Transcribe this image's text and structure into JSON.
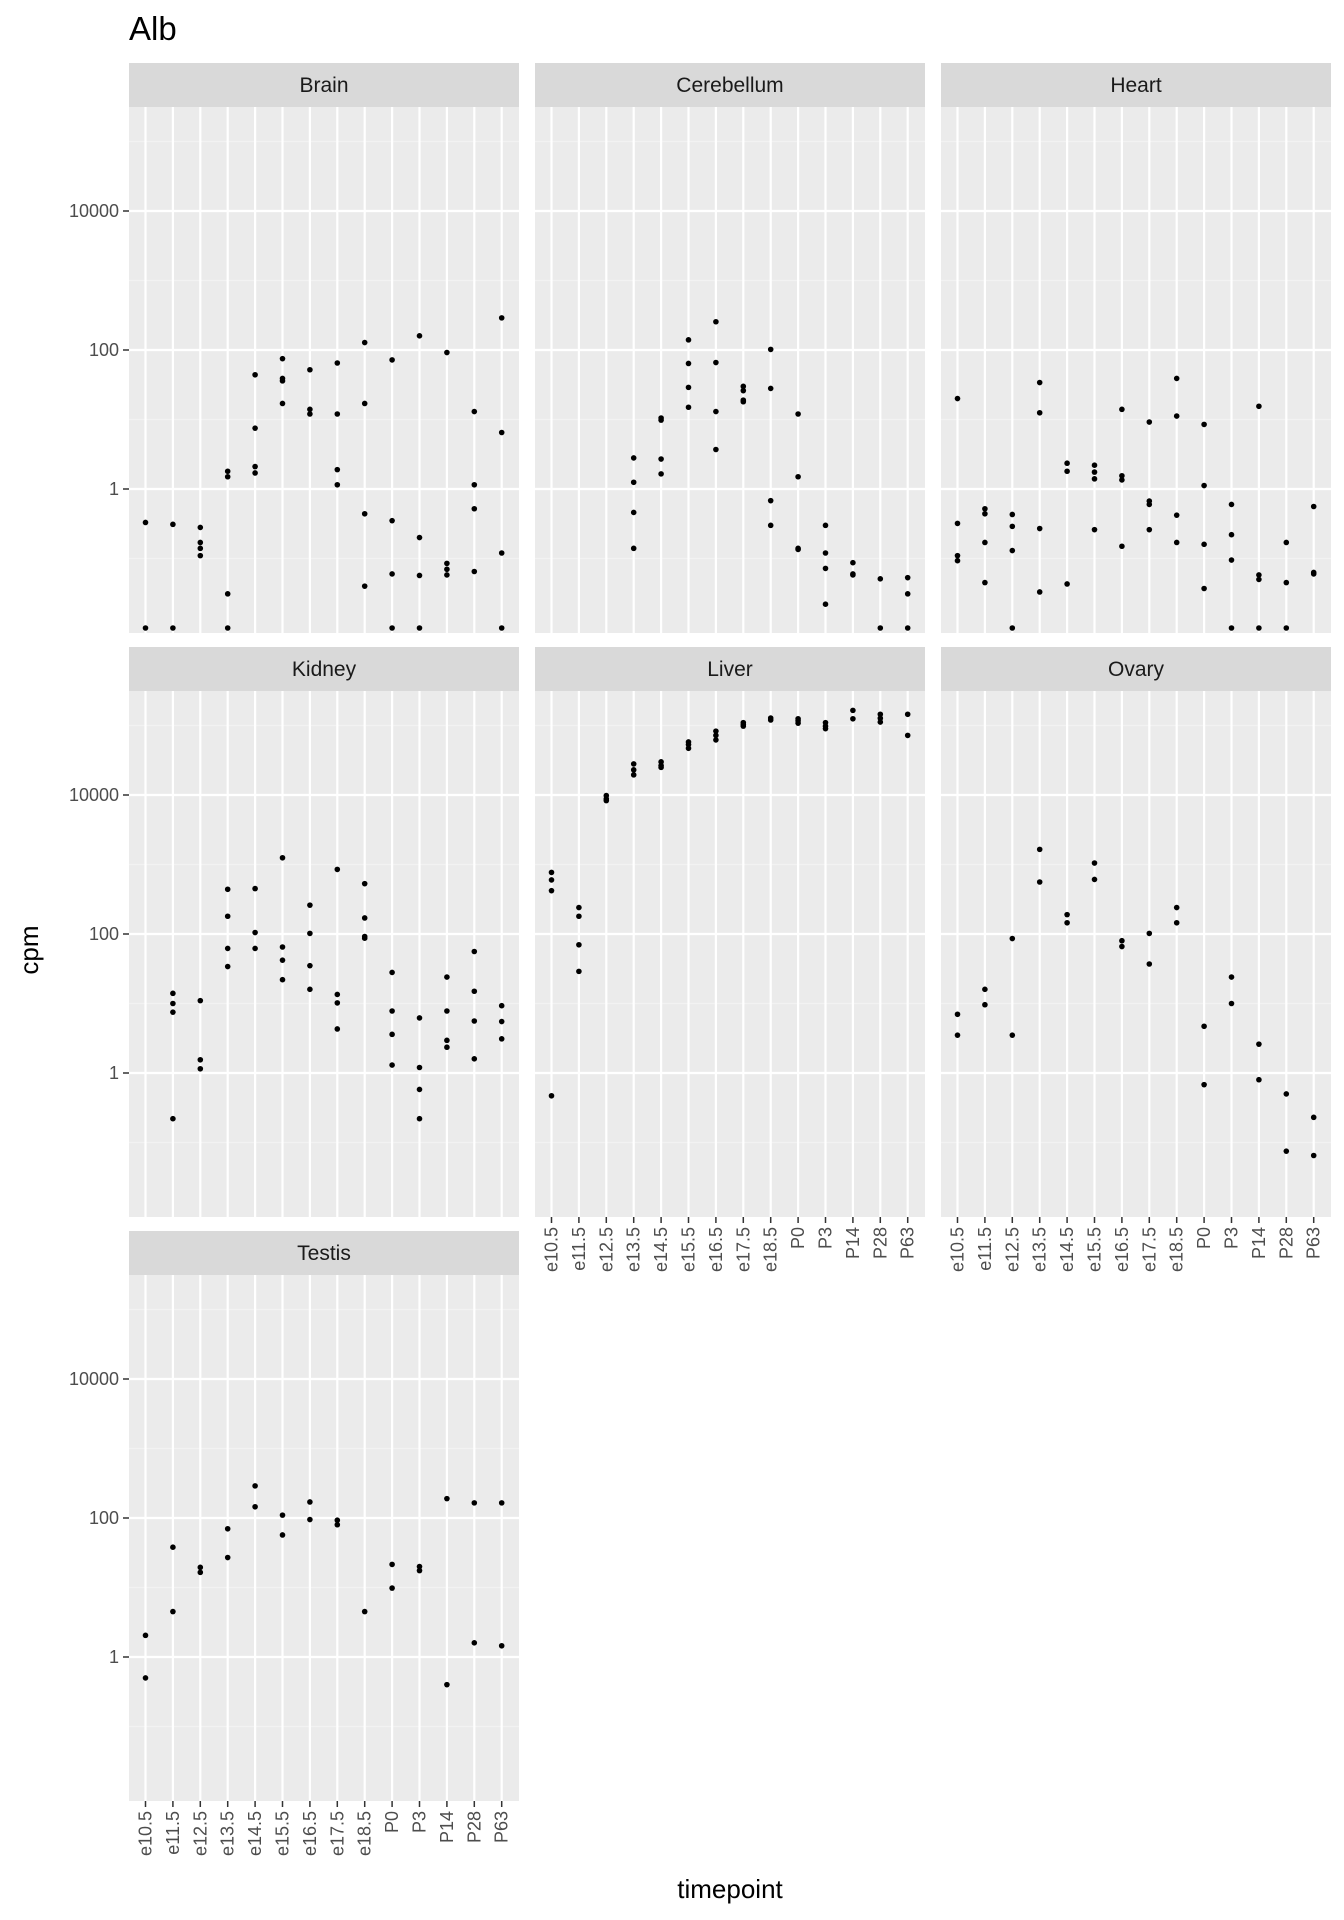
{
  "chart_data": {
    "type": "scatter",
    "title": "Alb",
    "xlabel": "timepoint",
    "ylabel": "cpm",
    "y_scale": "log10",
    "y_ticks": [
      "1",
      "100",
      "10000"
    ],
    "x_categories": [
      "e10.5",
      "e11.5",
      "e12.5",
      "e13.5",
      "e14.5",
      "e15.5",
      "e16.5",
      "e17.5",
      "e18.5",
      "P0",
      "P3",
      "P14",
      "P28",
      "P63"
    ],
    "grid": true,
    "legend": "none",
    "panels": [
      {
        "name": "Brain",
        "points": [
          [
            "e10.5",
            0.33
          ],
          [
            "e10.5",
            0.01
          ],
          [
            "e11.5",
            0.31
          ],
          [
            "e11.5",
            0.01
          ],
          [
            "e12.5",
            0.28
          ],
          [
            "e12.5",
            0.14
          ],
          [
            "e12.5",
            0.17
          ],
          [
            "e12.5",
            0.11
          ],
          [
            "e13.5",
            1.8
          ],
          [
            "e13.5",
            1.5
          ],
          [
            "e13.5",
            0.031
          ],
          [
            "e13.5",
            0.01
          ],
          [
            "e14.5",
            44
          ],
          [
            "e14.5",
            7.5
          ],
          [
            "e14.5",
            2.1
          ],
          [
            "e14.5",
            1.7
          ],
          [
            "e15.5",
            75
          ],
          [
            "e15.5",
            39
          ],
          [
            "e15.5",
            36
          ],
          [
            "e15.5",
            17
          ],
          [
            "e16.5",
            52
          ],
          [
            "e16.5",
            14
          ],
          [
            "e16.5",
            12
          ],
          [
            "e17.5",
            65
          ],
          [
            "e17.5",
            12
          ],
          [
            "e17.5",
            1.9
          ],
          [
            "e17.5",
            1.15
          ],
          [
            "e18.5",
            128
          ],
          [
            "e18.5",
            17
          ],
          [
            "e18.5",
            0.44
          ],
          [
            "e18.5",
            0.04
          ],
          [
            "P0",
            72
          ],
          [
            "P0",
            0.35
          ],
          [
            "P0",
            0.06
          ],
          [
            "P0",
            0.01
          ],
          [
            "P3",
            160
          ],
          [
            "P3",
            0.2
          ],
          [
            "P3",
            0.057
          ],
          [
            "P3",
            0.01
          ],
          [
            "P14",
            92
          ],
          [
            "P14",
            0.085
          ],
          [
            "P14",
            0.07
          ],
          [
            "P14",
            0.058
          ],
          [
            "P28",
            13
          ],
          [
            "P28",
            1.15
          ],
          [
            "P28",
            0.52
          ],
          [
            "P28",
            0.065
          ],
          [
            "P63",
            290
          ],
          [
            "P63",
            6.5
          ],
          [
            "P63",
            0.12
          ],
          [
            "P63",
            0.01
          ]
        ]
      },
      {
        "name": "Cerebellum",
        "points": [
          [
            "e13.5",
            2.8
          ],
          [
            "e13.5",
            1.25
          ],
          [
            "e13.5",
            0.46
          ],
          [
            "e13.5",
            0.14
          ],
          [
            "e14.5",
            10.5
          ],
          [
            "e14.5",
            9.8
          ],
          [
            "e14.5",
            2.7
          ],
          [
            "e14.5",
            1.65
          ],
          [
            "e15.5",
            140
          ],
          [
            "e15.5",
            64
          ],
          [
            "e15.5",
            29
          ],
          [
            "e15.5",
            15
          ],
          [
            "e16.5",
            255
          ],
          [
            "e16.5",
            66
          ],
          [
            "e16.5",
            13
          ],
          [
            "e16.5",
            3.7
          ],
          [
            "e17.5",
            30
          ],
          [
            "e17.5",
            26
          ],
          [
            "e17.5",
            19
          ],
          [
            "e17.5",
            18
          ],
          [
            "e18.5",
            102
          ],
          [
            "e18.5",
            28
          ],
          [
            "e18.5",
            0.68
          ],
          [
            "e18.5",
            0.3
          ],
          [
            "P0",
            12
          ],
          [
            "P0",
            1.5
          ],
          [
            "P0",
            0.14
          ],
          [
            "P0",
            0.135
          ],
          [
            "P3",
            0.3
          ],
          [
            "P3",
            0.12
          ],
          [
            "P3",
            0.072
          ],
          [
            "P3",
            0.022
          ],
          [
            "P14",
            0.087
          ],
          [
            "P14",
            0.06
          ],
          [
            "P14",
            0.058
          ],
          [
            "P28",
            0.051
          ],
          [
            "P28",
            0.01
          ],
          [
            "P63",
            0.053
          ],
          [
            "P63",
            0.031
          ],
          [
            "P63",
            0.01
          ]
        ]
      },
      {
        "name": "Heart",
        "points": [
          [
            "e10.5",
            20
          ],
          [
            "e10.5",
            0.32
          ],
          [
            "e10.5",
            0.11
          ],
          [
            "e10.5",
            0.093
          ],
          [
            "e11.5",
            0.52
          ],
          [
            "e11.5",
            0.44
          ],
          [
            "e11.5",
            0.17
          ],
          [
            "e11.5",
            0.045
          ],
          [
            "e12.5",
            0.43
          ],
          [
            "e12.5",
            0.29
          ],
          [
            "e12.5",
            0.13
          ],
          [
            "e12.5",
            0.01
          ],
          [
            "e13.5",
            34
          ],
          [
            "e13.5",
            12.5
          ],
          [
            "e13.5",
            0.27
          ],
          [
            "e13.5",
            0.033
          ],
          [
            "e14.5",
            2.35
          ],
          [
            "e14.5",
            1.8
          ],
          [
            "e14.5",
            0.043
          ],
          [
            "e15.5",
            2.2
          ],
          [
            "e15.5",
            1.75
          ],
          [
            "e15.5",
            1.4
          ],
          [
            "e15.5",
            0.26
          ],
          [
            "e16.5",
            14
          ],
          [
            "e16.5",
            1.55
          ],
          [
            "e16.5",
            1.35
          ],
          [
            "e16.5",
            0.15
          ],
          [
            "e17.5",
            9.2
          ],
          [
            "e17.5",
            0.67
          ],
          [
            "e17.5",
            0.6
          ],
          [
            "e17.5",
            0.26
          ],
          [
            "e18.5",
            39
          ],
          [
            "e18.5",
            11.2
          ],
          [
            "e18.5",
            0.42
          ],
          [
            "e18.5",
            0.17
          ],
          [
            "P0",
            8.5
          ],
          [
            "P0",
            1.12
          ],
          [
            "P0",
            0.16
          ],
          [
            "P0",
            0.037
          ],
          [
            "P3",
            0.6
          ],
          [
            "P3",
            0.22
          ],
          [
            "P3",
            0.095
          ],
          [
            "P3",
            0.01
          ],
          [
            "P14",
            15.5
          ],
          [
            "P14",
            0.058
          ],
          [
            "P14",
            0.05
          ],
          [
            "P14",
            0.01
          ],
          [
            "P28",
            0.17
          ],
          [
            "P28",
            0.045
          ],
          [
            "P28",
            0.01
          ],
          [
            "P63",
            0.56
          ],
          [
            "P63",
            0.063
          ],
          [
            "P63",
            0.06
          ]
        ]
      },
      {
        "name": "Kidney",
        "points": [
          [
            "e11.5",
            14
          ],
          [
            "e11.5",
            10
          ],
          [
            "e11.5",
            7.5
          ],
          [
            "e11.5",
            0.22
          ],
          [
            "e12.5",
            11
          ],
          [
            "e12.5",
            1.55
          ],
          [
            "e12.5",
            1.15
          ],
          [
            "e13.5",
            440
          ],
          [
            "e13.5",
            180
          ],
          [
            "e13.5",
            62
          ],
          [
            "e13.5",
            34
          ],
          [
            "e14.5",
            450
          ],
          [
            "e14.5",
            105
          ],
          [
            "e14.5",
            62
          ],
          [
            "e15.5",
            1250
          ],
          [
            "e15.5",
            65
          ],
          [
            "e15.5",
            42
          ],
          [
            "e15.5",
            22
          ],
          [
            "e16.5",
            260
          ],
          [
            "e16.5",
            102
          ],
          [
            "e16.5",
            35
          ],
          [
            "e16.5",
            16
          ],
          [
            "e17.5",
            850
          ],
          [
            "e17.5",
            13.5
          ],
          [
            "e17.5",
            10.2
          ],
          [
            "e17.5",
            4.3
          ],
          [
            "e18.5",
            530
          ],
          [
            "e18.5",
            170
          ],
          [
            "e18.5",
            92
          ],
          [
            "e18.5",
            87
          ],
          [
            "P0",
            28
          ],
          [
            "P0",
            7.8
          ],
          [
            "P0",
            3.6
          ],
          [
            "P0",
            1.3
          ],
          [
            "P3",
            6.2
          ],
          [
            "P3",
            1.2
          ],
          [
            "P3",
            0.58
          ],
          [
            "P3",
            0.22
          ],
          [
            "P14",
            24
          ],
          [
            "P14",
            7.8
          ],
          [
            "P14",
            2.95
          ],
          [
            "P14",
            2.35
          ],
          [
            "P28",
            56
          ],
          [
            "P28",
            15
          ],
          [
            "P28",
            5.6
          ],
          [
            "P28",
            1.6
          ],
          [
            "P63",
            9.3
          ],
          [
            "P63",
            5.5
          ],
          [
            "P63",
            3.1
          ]
        ]
      },
      {
        "name": "Liver",
        "points": [
          [
            "e10.5",
            770
          ],
          [
            "e10.5",
            600
          ],
          [
            "e10.5",
            420
          ],
          [
            "e10.5",
            0.47
          ],
          [
            "e11.5",
            240
          ],
          [
            "e11.5",
            180
          ],
          [
            "e11.5",
            70
          ],
          [
            "e11.5",
            29
          ],
          [
            "e12.5",
            9800
          ],
          [
            "e12.5",
            8800
          ],
          [
            "e12.5",
            8300
          ],
          [
            "e13.5",
            28000
          ],
          [
            "e13.5",
            23000
          ],
          [
            "e13.5",
            19500
          ],
          [
            "e14.5",
            30000
          ],
          [
            "e14.5",
            26500
          ],
          [
            "e14.5",
            25000
          ],
          [
            "e15.5",
            58000
          ],
          [
            "e15.5",
            53000
          ],
          [
            "e15.5",
            47000
          ],
          [
            "e16.5",
            83000
          ],
          [
            "e16.5",
            72000
          ],
          [
            "e16.5",
            62000
          ],
          [
            "e17.5",
            110000
          ],
          [
            "e17.5",
            103000
          ],
          [
            "e17.5",
            98000
          ],
          [
            "e18.5",
            128000
          ],
          [
            "e18.5",
            120000
          ],
          [
            "P0",
            125000
          ],
          [
            "P0",
            117000
          ],
          [
            "P0",
            108000
          ],
          [
            "P3",
            110000
          ],
          [
            "P3",
            98000
          ],
          [
            "P3",
            90000
          ],
          [
            "P14",
            165000
          ],
          [
            "P14",
            125000
          ],
          [
            "P28",
            145000
          ],
          [
            "P28",
            127000
          ],
          [
            "P28",
            112000
          ],
          [
            "P63",
            145000
          ],
          [
            "P63",
            72000
          ]
        ]
      },
      {
        "name": "Ovary",
        "points": [
          [
            "e10.5",
            7
          ],
          [
            "e10.5",
            3.5
          ],
          [
            "e11.5",
            16
          ],
          [
            "e11.5",
            9.6
          ],
          [
            "e12.5",
            86
          ],
          [
            "e12.5",
            3.5
          ],
          [
            "e13.5",
            1650
          ],
          [
            "e13.5",
            560
          ],
          [
            "e14.5",
            190
          ],
          [
            "e14.5",
            145
          ],
          [
            "e15.5",
            1050
          ],
          [
            "e15.5",
            610
          ],
          [
            "e16.5",
            80
          ],
          [
            "e16.5",
            66
          ],
          [
            "e17.5",
            102
          ],
          [
            "e17.5",
            37
          ],
          [
            "e18.5",
            240
          ],
          [
            "e18.5",
            145
          ],
          [
            "P0",
            4.7
          ],
          [
            "P0",
            0.68
          ],
          [
            "P3",
            24
          ],
          [
            "P3",
            10
          ],
          [
            "P14",
            2.6
          ],
          [
            "P14",
            0.8
          ],
          [
            "P28",
            0.5
          ],
          [
            "P28",
            0.075
          ],
          [
            "P63",
            0.23
          ],
          [
            "P63",
            0.065
          ]
        ]
      },
      {
        "name": "Testis",
        "points": [
          [
            "e10.5",
            2.05
          ],
          [
            "e10.5",
            0.5
          ],
          [
            "e11.5",
            38
          ],
          [
            "e11.5",
            4.5
          ],
          [
            "e12.5",
            19.5
          ],
          [
            "e12.5",
            16.5
          ],
          [
            "e13.5",
            70
          ],
          [
            "e13.5",
            27
          ],
          [
            "e14.5",
            290
          ],
          [
            "e14.5",
            145
          ],
          [
            "e15.5",
            110
          ],
          [
            "e15.5",
            57
          ],
          [
            "e16.5",
            170
          ],
          [
            "e16.5",
            95
          ],
          [
            "e17.5",
            93
          ],
          [
            "e17.5",
            80
          ],
          [
            "e18.5",
            4.5
          ],
          [
            "P0",
            21.5
          ],
          [
            "P0",
            9.8
          ],
          [
            "P3",
            20
          ],
          [
            "P3",
            17.5
          ],
          [
            "P14",
            190
          ],
          [
            "P14",
            0.4
          ],
          [
            "P28",
            165
          ],
          [
            "P28",
            1.6
          ],
          [
            "P63",
            165
          ],
          [
            "P63",
            1.45
          ]
        ]
      }
    ]
  },
  "colors": {
    "panel_background": "#ebebeb",
    "grid_major": "#ffffff",
    "grid_minor": "#f2f2f2",
    "strip_background": "#d9d9d9",
    "point": "#000000",
    "tick_text": "#4d4d4d",
    "tick_mark": "#333333"
  }
}
